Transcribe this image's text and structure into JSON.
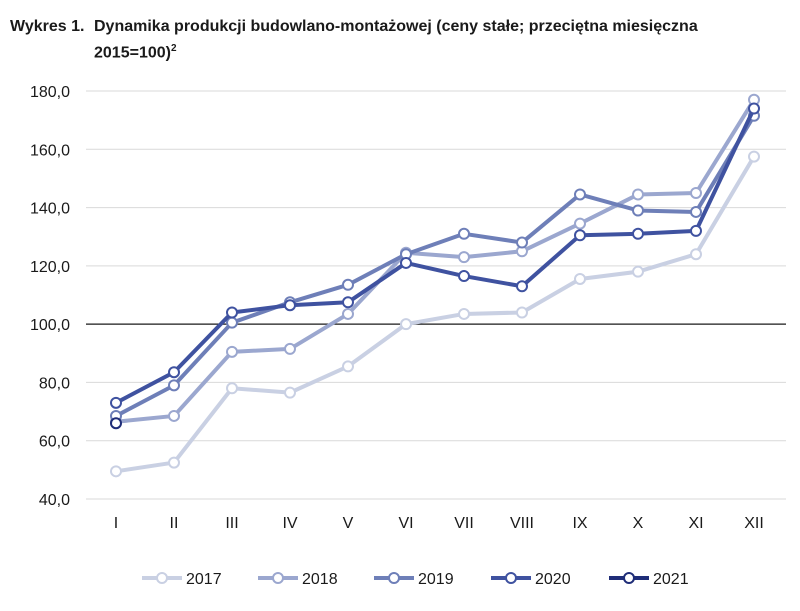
{
  "header": {
    "label": "Wykres 1.",
    "title": "Dynamika produkcji budowlano-montażowej (ceny stałe; przeciętna miesięczna 2015=100)",
    "footnote": "2"
  },
  "chart_data": {
    "type": "line",
    "categories": [
      "I",
      "II",
      "III",
      "IV",
      "V",
      "VI",
      "VII",
      "VIII",
      "IX",
      "X",
      "XI",
      "XII"
    ],
    "ylim": [
      40,
      180
    ],
    "yticks": [
      "40,0",
      "60,0",
      "80,0",
      "100,0",
      "120,0",
      "140,0",
      "160,0",
      "180,0"
    ],
    "reference_line": 100,
    "grid": true,
    "legend_position": "bottom",
    "series": [
      {
        "name": "2017",
        "color": "#c9d0e3",
        "values": [
          49.5,
          52.5,
          78.0,
          76.5,
          85.5,
          100.0,
          103.5,
          104.0,
          115.5,
          118.0,
          124.0,
          157.5
        ]
      },
      {
        "name": "2018",
        "color": "#9ba7cf",
        "values": [
          66.5,
          68.5,
          90.5,
          91.5,
          103.5,
          124.5,
          123.0,
          125.0,
          134.5,
          144.5,
          145.0,
          177.0
        ]
      },
      {
        "name": "2019",
        "color": "#6e7fb8",
        "values": [
          68.5,
          79.0,
          100.5,
          107.5,
          113.5,
          124.0,
          131.0,
          128.0,
          144.5,
          139.0,
          138.5,
          171.5
        ]
      },
      {
        "name": "2020",
        "color": "#3f52a0",
        "values": [
          73.0,
          83.5,
          104.0,
          106.5,
          107.5,
          121.0,
          116.5,
          113.0,
          130.5,
          131.0,
          132.0,
          174.0
        ]
      },
      {
        "name": "2021",
        "color": "#1f2d78",
        "values": [
          66.0,
          null,
          null,
          null,
          null,
          null,
          null,
          null,
          null,
          null,
          null,
          null
        ]
      }
    ]
  }
}
